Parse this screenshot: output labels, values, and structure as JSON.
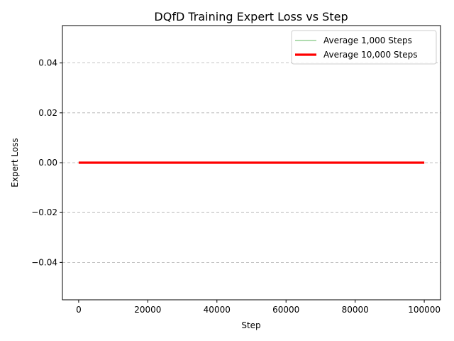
{
  "chart_data": {
    "type": "line",
    "title": "DQfD Training Expert Loss vs Step",
    "xlabel": "Step",
    "ylabel": "Expert Loss",
    "xlim": [
      -4700,
      104700
    ],
    "ylim": [
      -0.055,
      0.055
    ],
    "x_ticks": [
      0,
      20000,
      40000,
      60000,
      80000,
      100000
    ],
    "x_tick_labels": [
      "0",
      "20000",
      "40000",
      "60000",
      "80000",
      "100000"
    ],
    "y_ticks": [
      -0.04,
      -0.02,
      0.0,
      0.02,
      0.04
    ],
    "y_tick_labels": [
      "−0.04",
      "−0.02",
      "0.00",
      "0.02",
      "0.04"
    ],
    "grid": "y-dashed",
    "legend_position": "top-right",
    "series": [
      {
        "name": "Average 1,000 Steps",
        "color": "#2ca02c",
        "x": [
          0,
          100000
        ],
        "y": [
          0.0,
          0.0
        ]
      },
      {
        "name": "Average 10,000 Steps",
        "color": "#ff0000",
        "x": [
          0,
          100000
        ],
        "y": [
          0.0,
          0.0
        ]
      }
    ]
  }
}
